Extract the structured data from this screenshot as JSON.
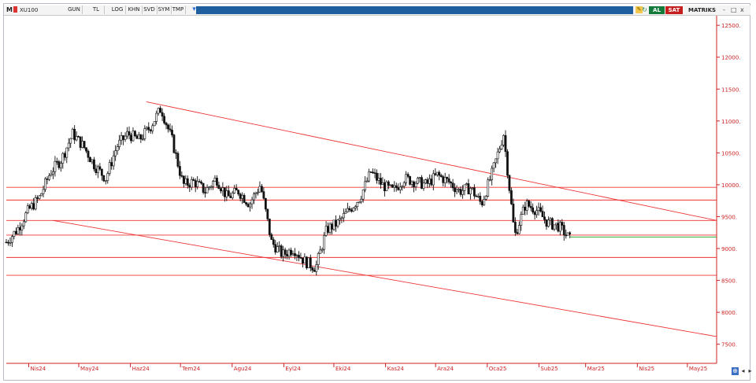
{
  "toolbar": {
    "mode_label": "M",
    "symbol": "XU100",
    "buttons": [
      "GUN",
      "TL",
      "LOG",
      "KHN",
      "SVD",
      "SYM",
      "TMP"
    ],
    "buy_label": "AL",
    "sell_label": "SAT",
    "brand": "MATRIKS",
    "icons": [
      "dropdown-icon",
      "wrench-icon",
      "refresh-icon"
    ],
    "window_controls": [
      "-",
      "□",
      "x"
    ]
  },
  "colors": {
    "price_axis": "#cc2222",
    "time_axis": "#cc2222",
    "trend_lines": "#ee3333",
    "last_price_line": "#33aa33",
    "candles": "#111111",
    "toolbar_blue": "#1f5fa0",
    "buy": "#127a3a",
    "sell": "#c51e1e"
  },
  "chart_data": {
    "type": "candlestick",
    "ylim": [
      7200,
      12650
    ],
    "y_ticks": [
      {
        "value": 12500,
        "label": "12500."
      },
      {
        "value": 12000,
        "label": "12000."
      },
      {
        "value": 11500,
        "label": "11500."
      },
      {
        "value": 11000,
        "label": "11000."
      },
      {
        "value": 10500,
        "label": "10500."
      },
      {
        "value": 10000,
        "label": "10000."
      },
      {
        "value": 9500,
        "label": "9500."
      },
      {
        "value": 9000,
        "label": "9000."
      },
      {
        "value": 8500,
        "label": "8500."
      },
      {
        "value": 8000,
        "label": "8000."
      },
      {
        "value": 7500,
        "label": "7500."
      }
    ],
    "x_ticks": [
      "Nis24",
      "May24",
      "Haz24",
      "Tem24",
      "Agu24",
      "Eyl24",
      "Eki24",
      "Kas24",
      "Ara24",
      "Oca25",
      "Sub25",
      "Mar25",
      "Nis25",
      "May25"
    ],
    "x_range_days": [
      0,
      426
    ],
    "closes_weekly": [
      9100,
      9300,
      9600,
      9800,
      10200,
      10400,
      10800,
      10600,
      10300,
      10100,
      10600,
      10800,
      10700,
      10900,
      11200,
      10700,
      10000,
      10050,
      9900,
      10100,
      9800,
      9900,
      9700,
      10000,
      9100,
      8900,
      9000,
      8800,
      8700,
      9300,
      9400,
      9600,
      9800,
      10200,
      10000,
      9900,
      10100,
      10050,
      10000,
      10150,
      10050,
      9900,
      9950,
      9700,
      10200,
      10800,
      9200,
      9700,
      9600,
      9400,
      9350,
      9150
    ],
    "horizontal_levels": [
      9960,
      9760,
      9440,
      9210,
      8860,
      8580
    ],
    "channel_upper": {
      "from": {
        "day": 84,
        "value": 11300
      },
      "to": {
        "day": 426,
        "value": 9440
      }
    },
    "channel_lower": {
      "from": {
        "day": 28,
        "value": 9440
      },
      "to": {
        "day": 426,
        "value": 7620
      }
    },
    "last_price": {
      "value": 9180,
      "from_day": 338,
      "to_day": 426
    }
  }
}
